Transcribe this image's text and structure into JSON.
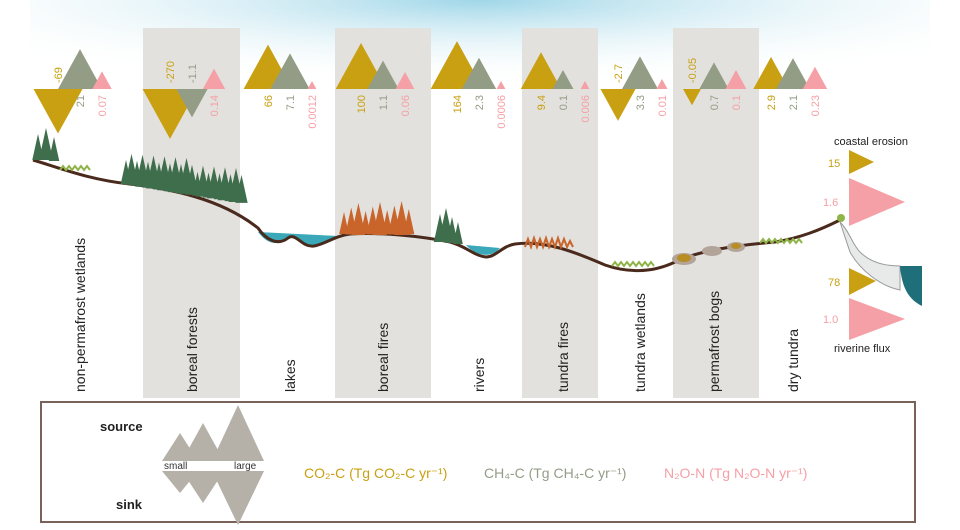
{
  "colors": {
    "co2": "#c9a012",
    "ch4": "#939d86",
    "n2o": "#f5a0a6",
    "band": "#e2e1dd",
    "soil": "#4a2a1c",
    "water": "#3aa8b8",
    "forest": "#3f6e4c",
    "fire": "#c9642a",
    "sky": "#cfeaf2"
  },
  "ecosystems": [
    {
      "label": "non-permafrost wetlands",
      "co2": "-69",
      "ch4": "21",
      "n2o": "0.07"
    },
    {
      "label": "boreal forests",
      "co2": "-270",
      "ch4": "-1.1",
      "n2o": "0.14"
    },
    {
      "label": "lakes",
      "co2": "66",
      "ch4": "7.1",
      "n2o": "0.0012"
    },
    {
      "label": "boreal fires",
      "co2": "100",
      "ch4": "1.1",
      "n2o": "0.06"
    },
    {
      "label": "rivers",
      "co2": "164",
      "ch4": "2.3",
      "n2o": "0.0006"
    },
    {
      "label": "tundra fires",
      "co2": "9.4",
      "ch4": "0.1",
      "n2o": "0.006"
    },
    {
      "label": "tundra wetlands",
      "co2": "-2.7",
      "ch4": "3.3",
      "n2o": "0.01"
    },
    {
      "label": "permafrost bogs",
      "co2": "-0.05",
      "ch4": "0.7",
      "n2o": "0.1"
    },
    {
      "label": "dry tundra",
      "co2": "2.9",
      "ch4": "2.1",
      "n2o": "0.23"
    }
  ],
  "lateral": {
    "coastal_erosion": {
      "label": "coastal erosion",
      "co2": "15",
      "n2o": "1.6"
    },
    "riverine_flux": {
      "label": "riverine flux",
      "co2": "78",
      "n2o": "1.0"
    }
  },
  "legend": {
    "source": "source",
    "sink": "sink",
    "small": "small",
    "large": "large",
    "co2_label": "CO₂-C (Tg CO₂-C yr⁻¹)",
    "ch4_label": "CH₄-C (Tg CH₄-C yr⁻¹)",
    "n2o_label": "N₂O-N (Tg N₂O-N yr⁻¹)"
  }
}
